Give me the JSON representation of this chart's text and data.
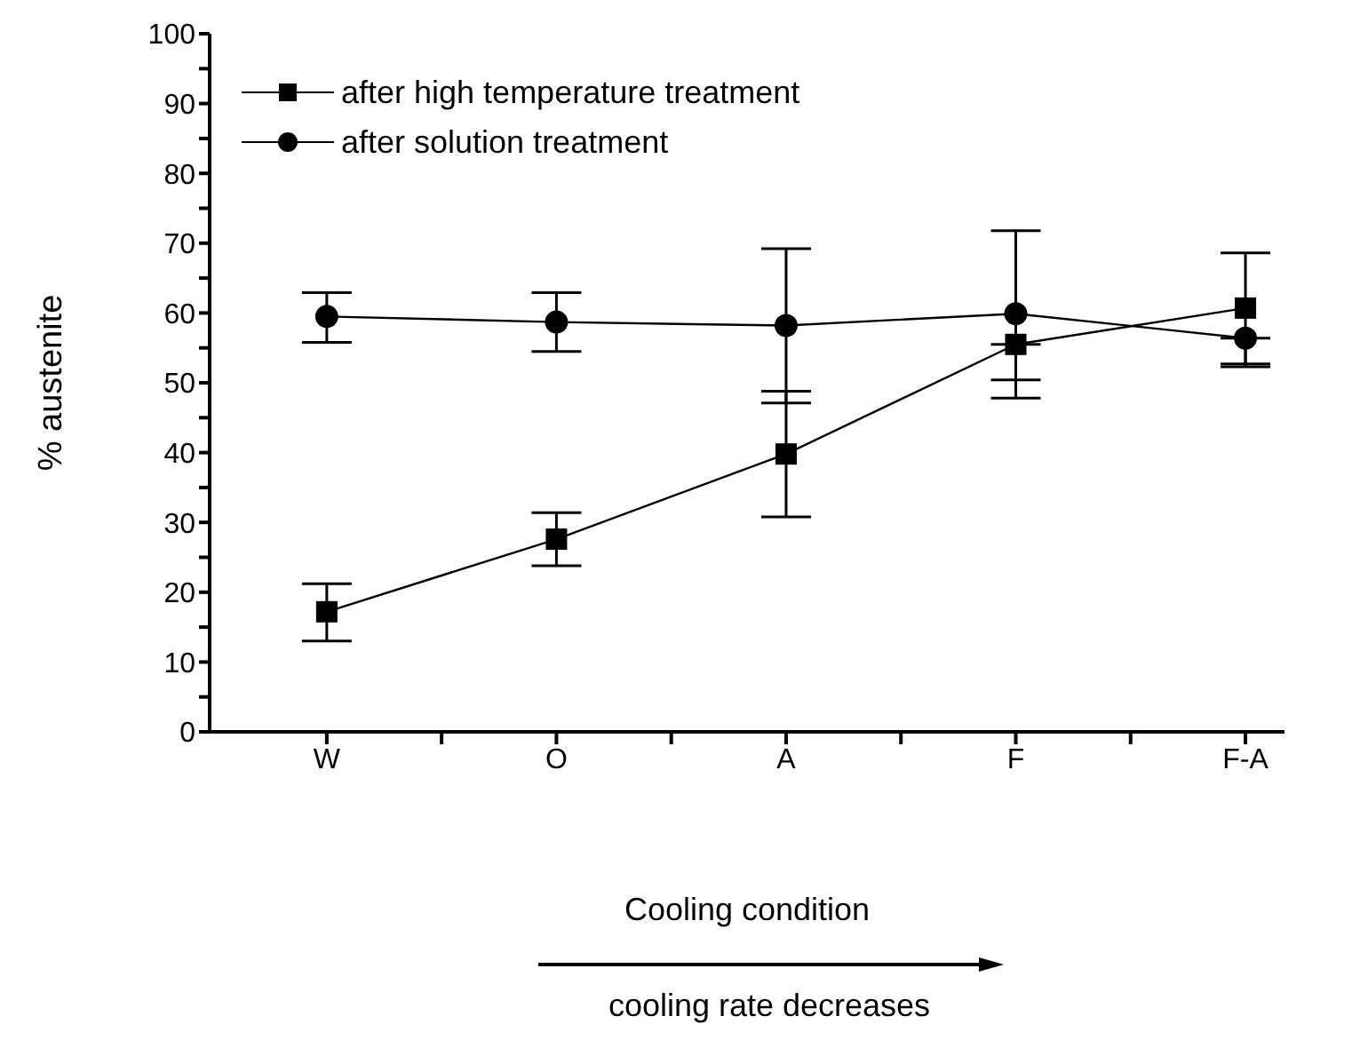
{
  "chart_data": {
    "type": "line",
    "xlabel": "Cooling condition",
    "ylabel": "% austenite",
    "categories": [
      "W",
      "O",
      "A",
      "F",
      "F-A"
    ],
    "series": [
      {
        "name": "after high temperature treatment",
        "color": "#000000",
        "marker": "square",
        "values": [
          17.2,
          27.6,
          39.8,
          55.5,
          60.7
        ],
        "errors": [
          [
            13,
            21.2
          ],
          [
            23.8,
            31.4
          ],
          [
            30.8,
            48.8
          ],
          [
            50.4,
            55.5
          ],
          [
            52.7,
            68.6
          ]
        ]
      },
      {
        "name": "after solution treatment",
        "color": "#000000",
        "marker": "circle",
        "values": [
          59.5,
          58.7,
          58.2,
          59.9,
          56.4
        ],
        "errors": [
          [
            55.8,
            62.9
          ],
          [
            54.5,
            62.9
          ],
          [
            47.1,
            69.2
          ],
          [
            47.8,
            71.8
          ],
          [
            52.3,
            56.4
          ]
        ]
      }
    ],
    "ylim": [
      0,
      100
    ],
    "yticks": [
      0,
      {
        "value": 5,
        "label": null
      },
      10,
      {
        "value": 15,
        "label": null
      },
      20,
      {
        "value": 25,
        "label": null
      },
      30,
      {
        "value": 35,
        "label": null
      },
      40,
      {
        "value": 45,
        "label": null
      },
      50,
      {
        "value": 55,
        "label": null
      },
      60,
      {
        "value": 65,
        "label": null
      },
      70,
      {
        "value": 75,
        "label": null
      },
      80,
      {
        "value": 85,
        "label": null
      },
      90,
      {
        "value": 95,
        "label": null
      },
      100
    ],
    "legend": "top left",
    "grid": false,
    "line_style": "solid",
    "annotations": [
      "cooling rate decreases"
    ]
  }
}
